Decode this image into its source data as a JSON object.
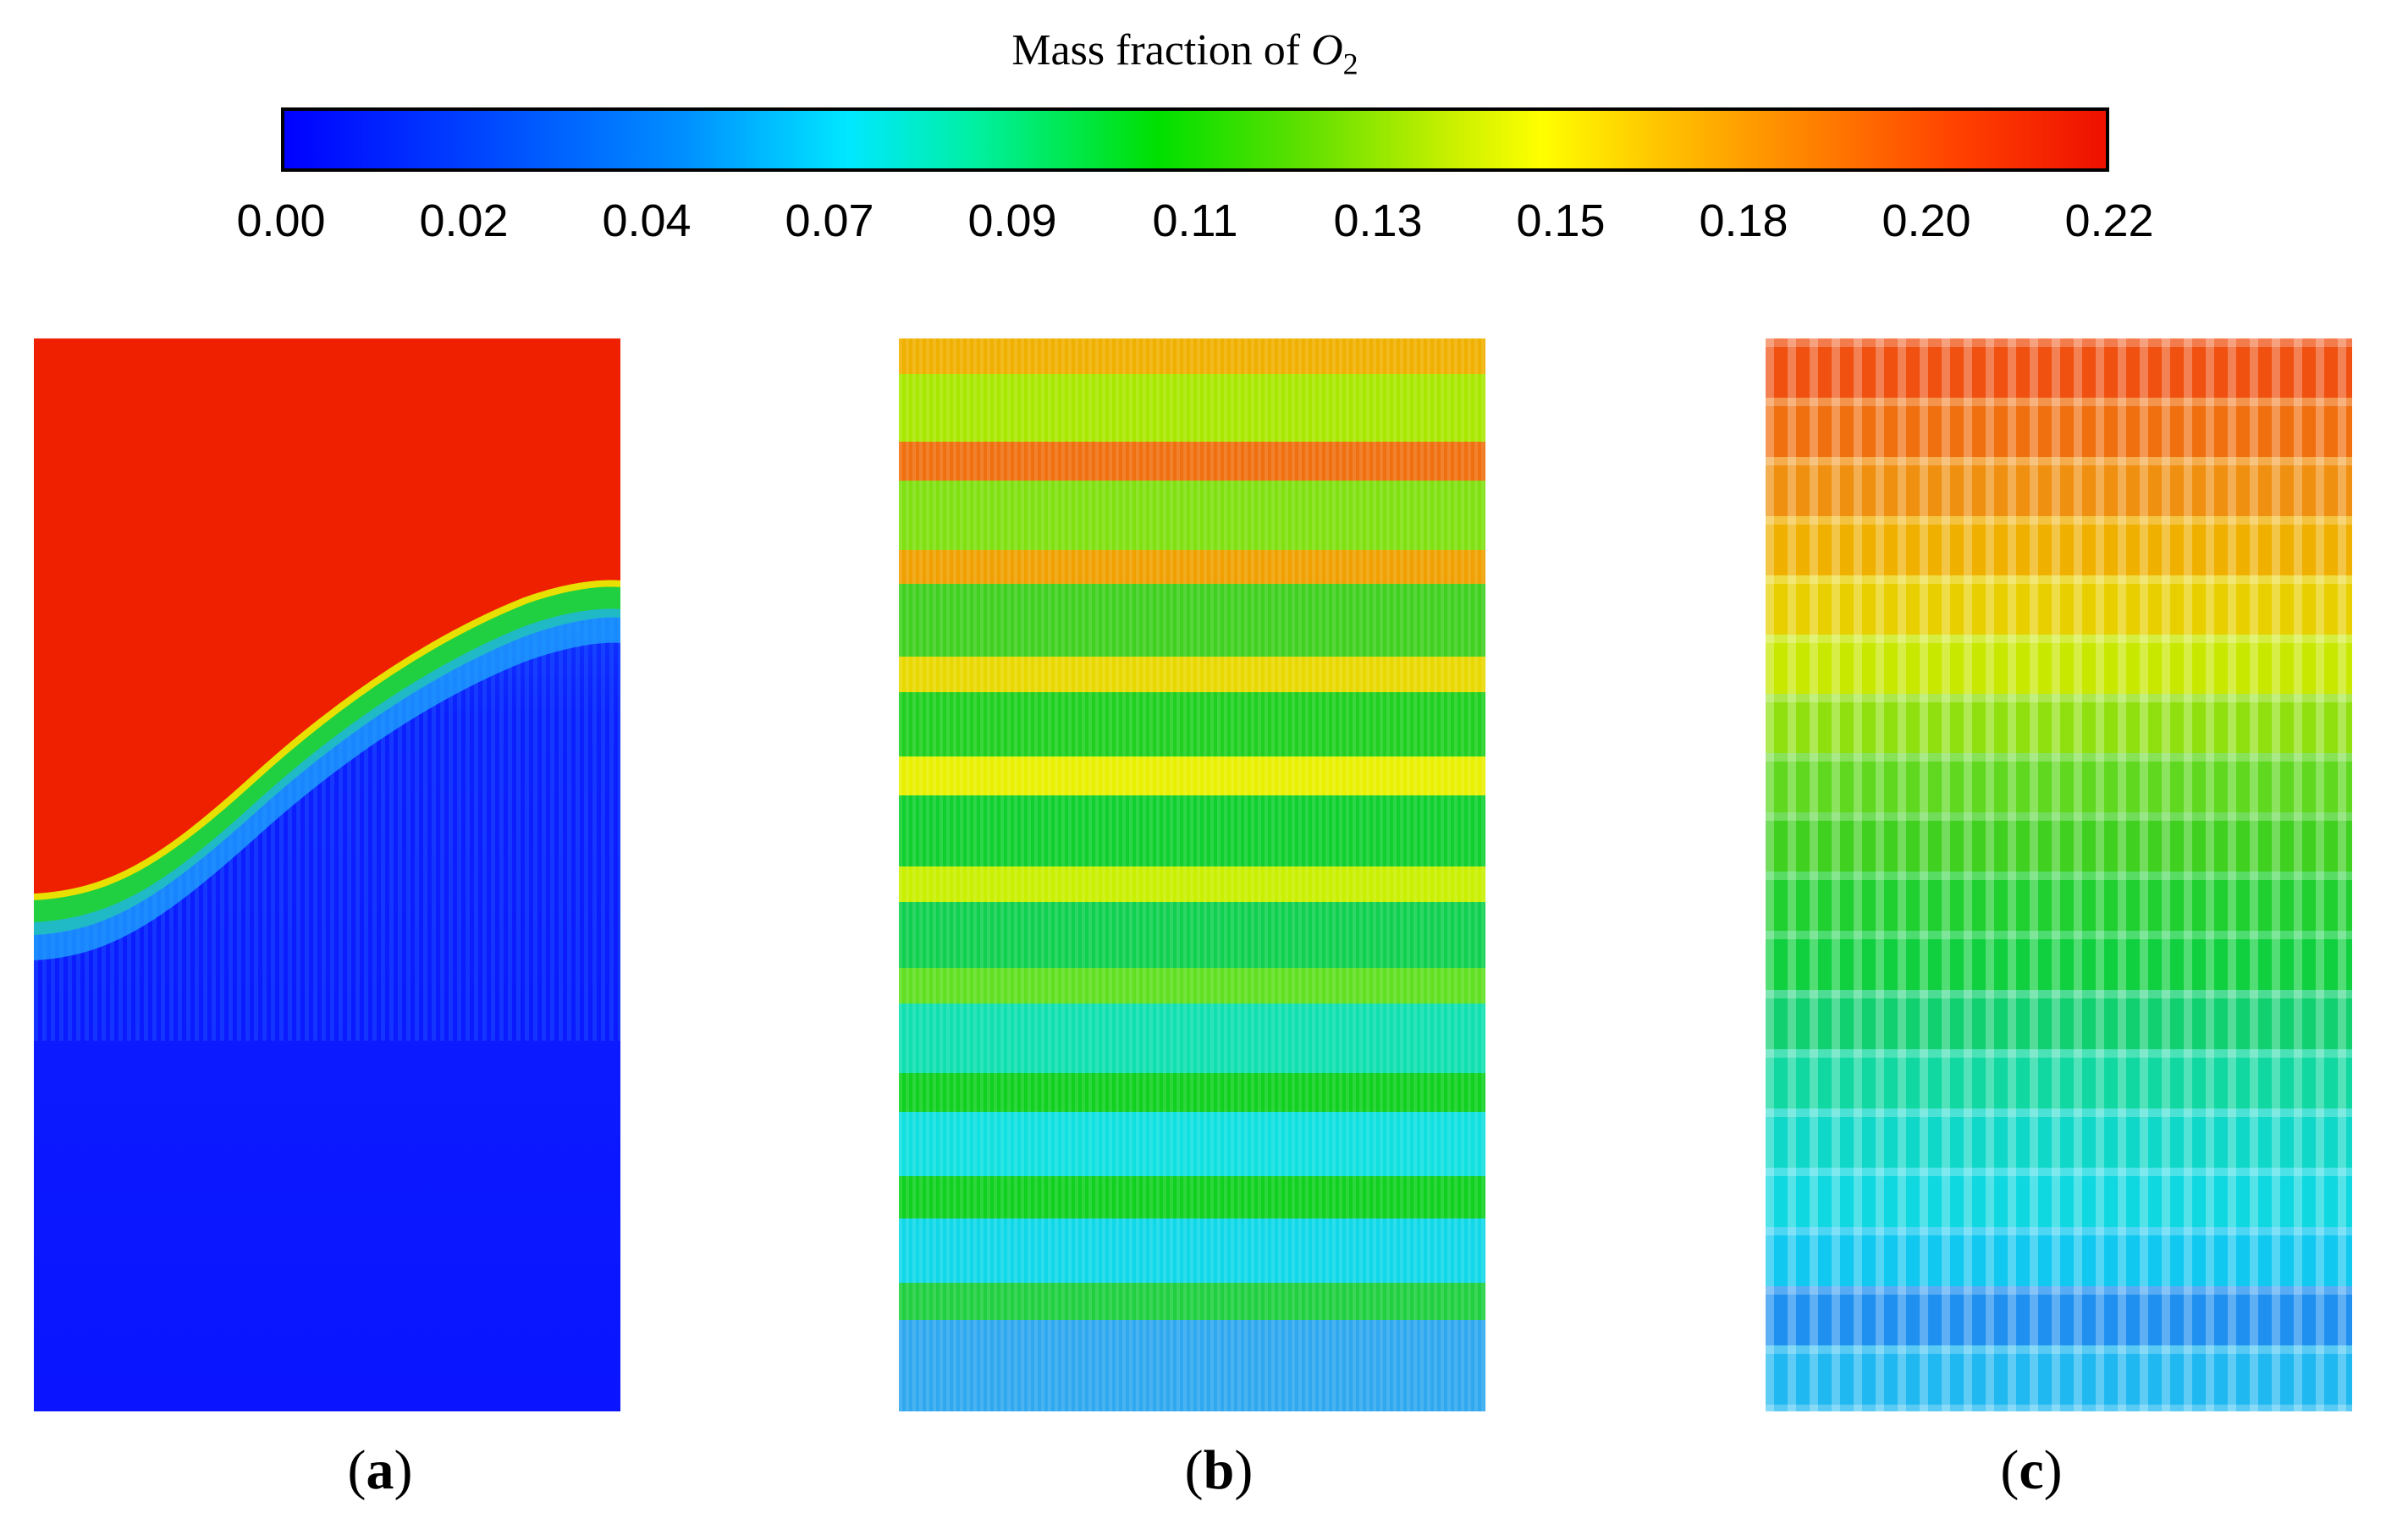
{
  "colorbar": {
    "title_prefix": "Mass fraction of ",
    "title_species": "O",
    "title_subscript": "2",
    "ticks": [
      "0.00",
      "0.02",
      "0.04",
      "0.07",
      "0.09",
      "0.11",
      "0.13",
      "0.15",
      "0.18",
      "0.20",
      "0.22"
    ],
    "min": 0.0,
    "max": 0.22
  },
  "panels": [
    {
      "label_open": "(",
      "label_letter": "a",
      "label_close": ")"
    },
    {
      "label_open": "(",
      "label_letter": "b",
      "label_close": ")"
    },
    {
      "label_open": "(",
      "label_letter": "c",
      "label_close": ")"
    }
  ],
  "colors": {
    "red": "#ee2000",
    "blue": "#0a14ff",
    "orange": "#f07010",
    "yellow": "#e8f000",
    "green": "#10d020",
    "cyan": "#10e0e0",
    "sky": "#30a8f0"
  }
}
